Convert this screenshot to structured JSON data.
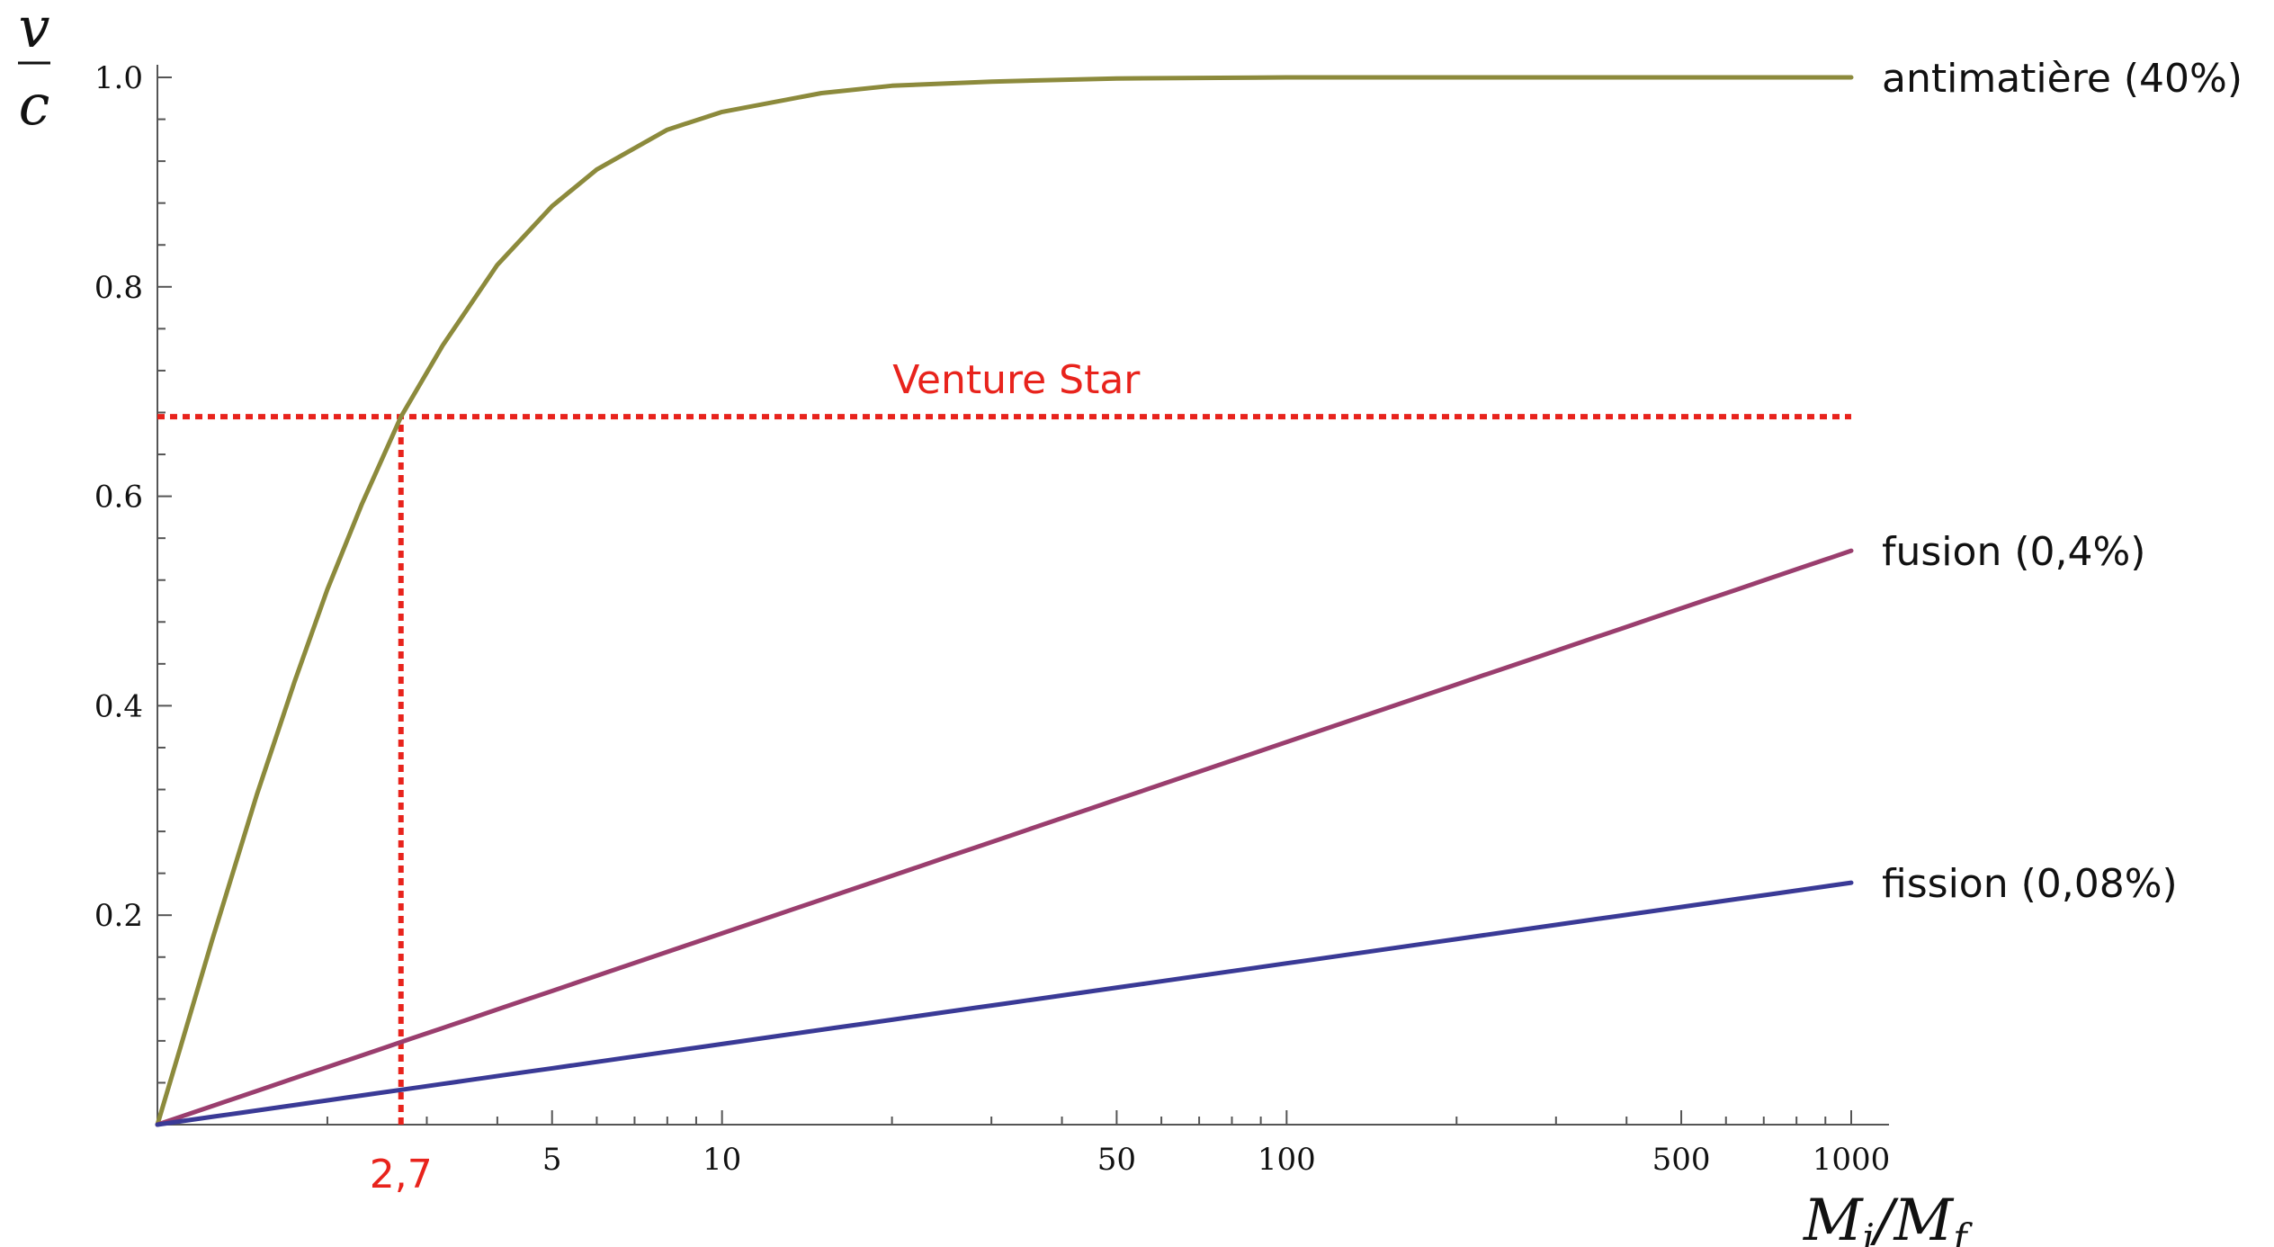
{
  "chart_data": {
    "type": "line",
    "title": "",
    "xlabel": {
      "main": "M",
      "sub1": "i",
      "sep": "/",
      "main2": "M",
      "sub2": "f"
    },
    "ylabel": {
      "numerator": "v",
      "denominator": "c"
    },
    "x_scale": "log",
    "xlim": [
      1,
      1000
    ],
    "ylim": [
      0,
      1.0
    ],
    "x_ticks": [
      {
        "value": 5,
        "label": "5"
      },
      {
        "value": 10,
        "label": "10"
      },
      {
        "value": 50,
        "label": "50"
      },
      {
        "value": 100,
        "label": "100"
      },
      {
        "value": 500,
        "label": "500"
      },
      {
        "value": 1000,
        "label": "1000"
      }
    ],
    "y_ticks": [
      {
        "value": 0.2,
        "label": "0.2"
      },
      {
        "value": 0.4,
        "label": "0.4"
      },
      {
        "value": 0.6,
        "label": "0.6"
      },
      {
        "value": 0.8,
        "label": "0.8"
      },
      {
        "value": 1.0,
        "label": "1.0"
      }
    ],
    "grid": false,
    "series": [
      {
        "name": "antimatière (40%)",
        "color": "#8c8a3c",
        "x": [
          1,
          1.1,
          1.25,
          1.5,
          1.75,
          2,
          2.3,
          2.7,
          3.2,
          4,
          5,
          6,
          8,
          10,
          15,
          20,
          30,
          50,
          100,
          200,
          500,
          1000
        ],
        "y": [
          0,
          0.075,
          0.176,
          0.315,
          0.423,
          0.511,
          0.592,
          0.676,
          0.744,
          0.821,
          0.877,
          0.912,
          0.95,
          0.967,
          0.985,
          0.992,
          0.996,
          0.999,
          1.0,
          1.0,
          1.0,
          1.0
        ]
      },
      {
        "name": "fusion (0,4%)",
        "color": "#9a3e6e",
        "x": [
          1,
          1000
        ],
        "y": [
          0,
          0.548
        ]
      },
      {
        "name": "fission (0,08%)",
        "color": "#3a3a96",
        "x": [
          1,
          1000
        ],
        "y": [
          0,
          0.231
        ]
      }
    ],
    "annotations": [
      {
        "type": "hline",
        "y": 0.676,
        "x_from": 1,
        "x_to": 1000,
        "label": "Venture Star",
        "color": "#e8231c"
      },
      {
        "type": "vline",
        "x": 2.7,
        "y_from": 0,
        "y_to": 0.676,
        "label": "2,7",
        "color": "#e8231c"
      }
    ]
  }
}
